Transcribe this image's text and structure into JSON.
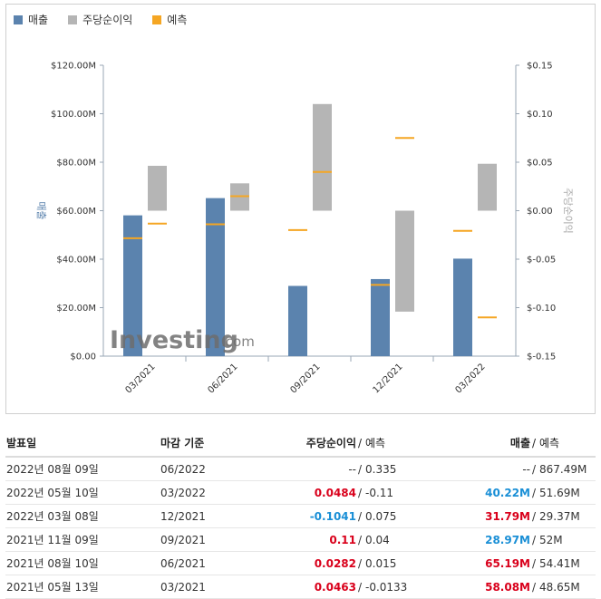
{
  "legend": {
    "revenue": "매출",
    "eps": "주당순이익",
    "forecast": "예측"
  },
  "colors": {
    "revenue": "#5b83ae",
    "eps": "#b5b5b5",
    "forecast": "#f5a623",
    "positive": "#d9001b",
    "negative": "#1a8fd6"
  },
  "logo": {
    "main": "Investing",
    "suffix": ".com"
  },
  "chart_data": {
    "type": "bar",
    "categories": [
      "03/2021",
      "06/2021",
      "09/2021",
      "12/2021",
      "03/2022"
    ],
    "series": [
      {
        "name": "매출",
        "axis": "left",
        "values": [
          58.08,
          65.19,
          28.97,
          31.79,
          40.22
        ]
      },
      {
        "name": "예측",
        "axis": "left",
        "values": [
          48.65,
          54.41,
          52,
          29.37,
          51.69
        ]
      },
      {
        "name": "주당순이익",
        "axis": "right",
        "values": [
          0.0463,
          0.0282,
          0.11,
          -0.1041,
          0.0484
        ]
      },
      {
        "name": "예측",
        "axis": "right",
        "values": [
          -0.0133,
          0.015,
          0.04,
          0.075,
          -0.11
        ]
      }
    ],
    "ylabel": "매출",
    "y2label": "주당순이익",
    "ylim": [
      0,
      120
    ],
    "y2lim": [
      -0.15,
      0.15
    ],
    "yticks": [
      "$120.00M",
      "$100.00M",
      "$80.00M",
      "$60.00M",
      "$40.00M",
      "$20.00M",
      "$0.00"
    ],
    "y2ticks": [
      "$0.15",
      "$0.10",
      "$0.05",
      "$0.00",
      "$-0.05",
      "$-0.10",
      "$-0.15"
    ]
  },
  "table": {
    "headers": {
      "date": "발표일",
      "period": "마감 기준",
      "eps": "주당순이익",
      "eps_forecast": "예측",
      "revenue": "매출",
      "revenue_forecast": "예측",
      "sep": "/"
    },
    "rows": [
      {
        "date": "2022년 08월 09일",
        "period": "06/2022",
        "eps": "--",
        "eps_forecast": "0.335",
        "revenue": "--",
        "revenue_forecast": "867.49M",
        "eps_class": "",
        "rev_class": ""
      },
      {
        "date": "2022년 05월 10일",
        "period": "03/2022",
        "eps": "0.0484",
        "eps_forecast": "-0.11",
        "revenue": "40.22M",
        "revenue_forecast": "51.69M",
        "eps_class": "pos",
        "rev_class": "neg"
      },
      {
        "date": "2022년 03월 08일",
        "period": "12/2021",
        "eps": "-0.1041",
        "eps_forecast": "0.075",
        "revenue": "31.79M",
        "revenue_forecast": "29.37M",
        "eps_class": "neg",
        "rev_class": "pos"
      },
      {
        "date": "2021년 11월 09일",
        "period": "09/2021",
        "eps": "0.11",
        "eps_forecast": "0.04",
        "revenue": "28.97M",
        "revenue_forecast": "52M",
        "eps_class": "pos",
        "rev_class": "neg"
      },
      {
        "date": "2021년 08월 10일",
        "period": "06/2021",
        "eps": "0.0282",
        "eps_forecast": "0.015",
        "revenue": "65.19M",
        "revenue_forecast": "54.41M",
        "eps_class": "pos",
        "rev_class": "pos"
      },
      {
        "date": "2021년 05월 13일",
        "period": "03/2021",
        "eps": "0.0463",
        "eps_forecast": "-0.0133",
        "revenue": "58.08M",
        "revenue_forecast": "48.65M",
        "eps_class": "pos",
        "rev_class": "pos"
      }
    ]
  }
}
